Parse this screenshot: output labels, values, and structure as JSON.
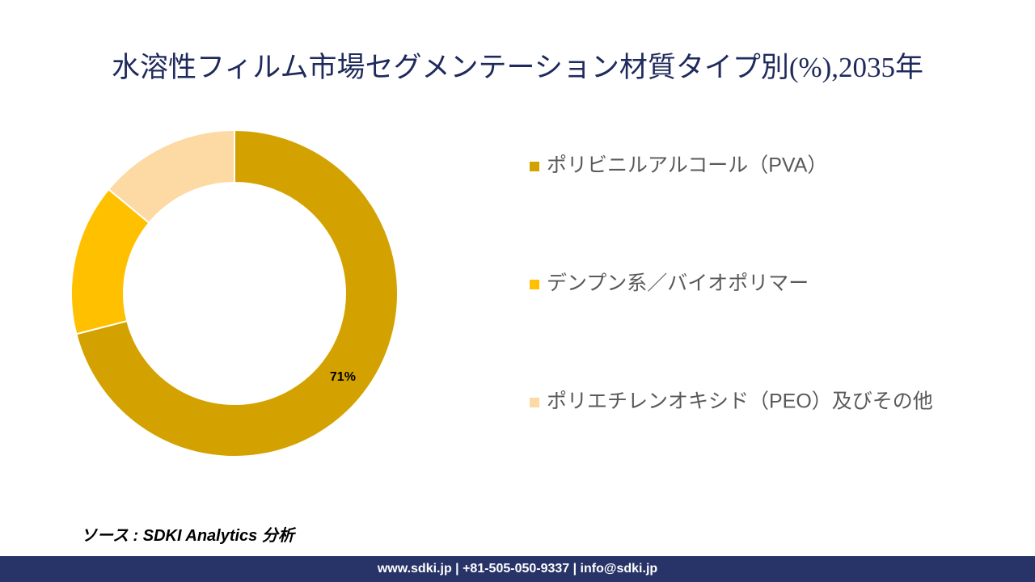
{
  "chart_data": {
    "type": "donut",
    "title": "水溶性フィルム市場セグメンテーション材質タイプ別(%),2035年",
    "categories": [
      "ポリビニルアルコール（PVA）",
      "デンプン系／バイオポリマー",
      "ポリエチレンオキシド（PEO）及びその他"
    ],
    "values": [
      71,
      15,
      14
    ],
    "value_labels": [
      "71%",
      null,
      null
    ],
    "colors": [
      "#d4a200",
      "#ffc000",
      "#fdd9a3"
    ],
    "legend": "right"
  },
  "source": "ソース : SDKI Analytics 分析",
  "footer": "www.sdki.jp | +81-505-050-9337 | info@sdki.jp"
}
